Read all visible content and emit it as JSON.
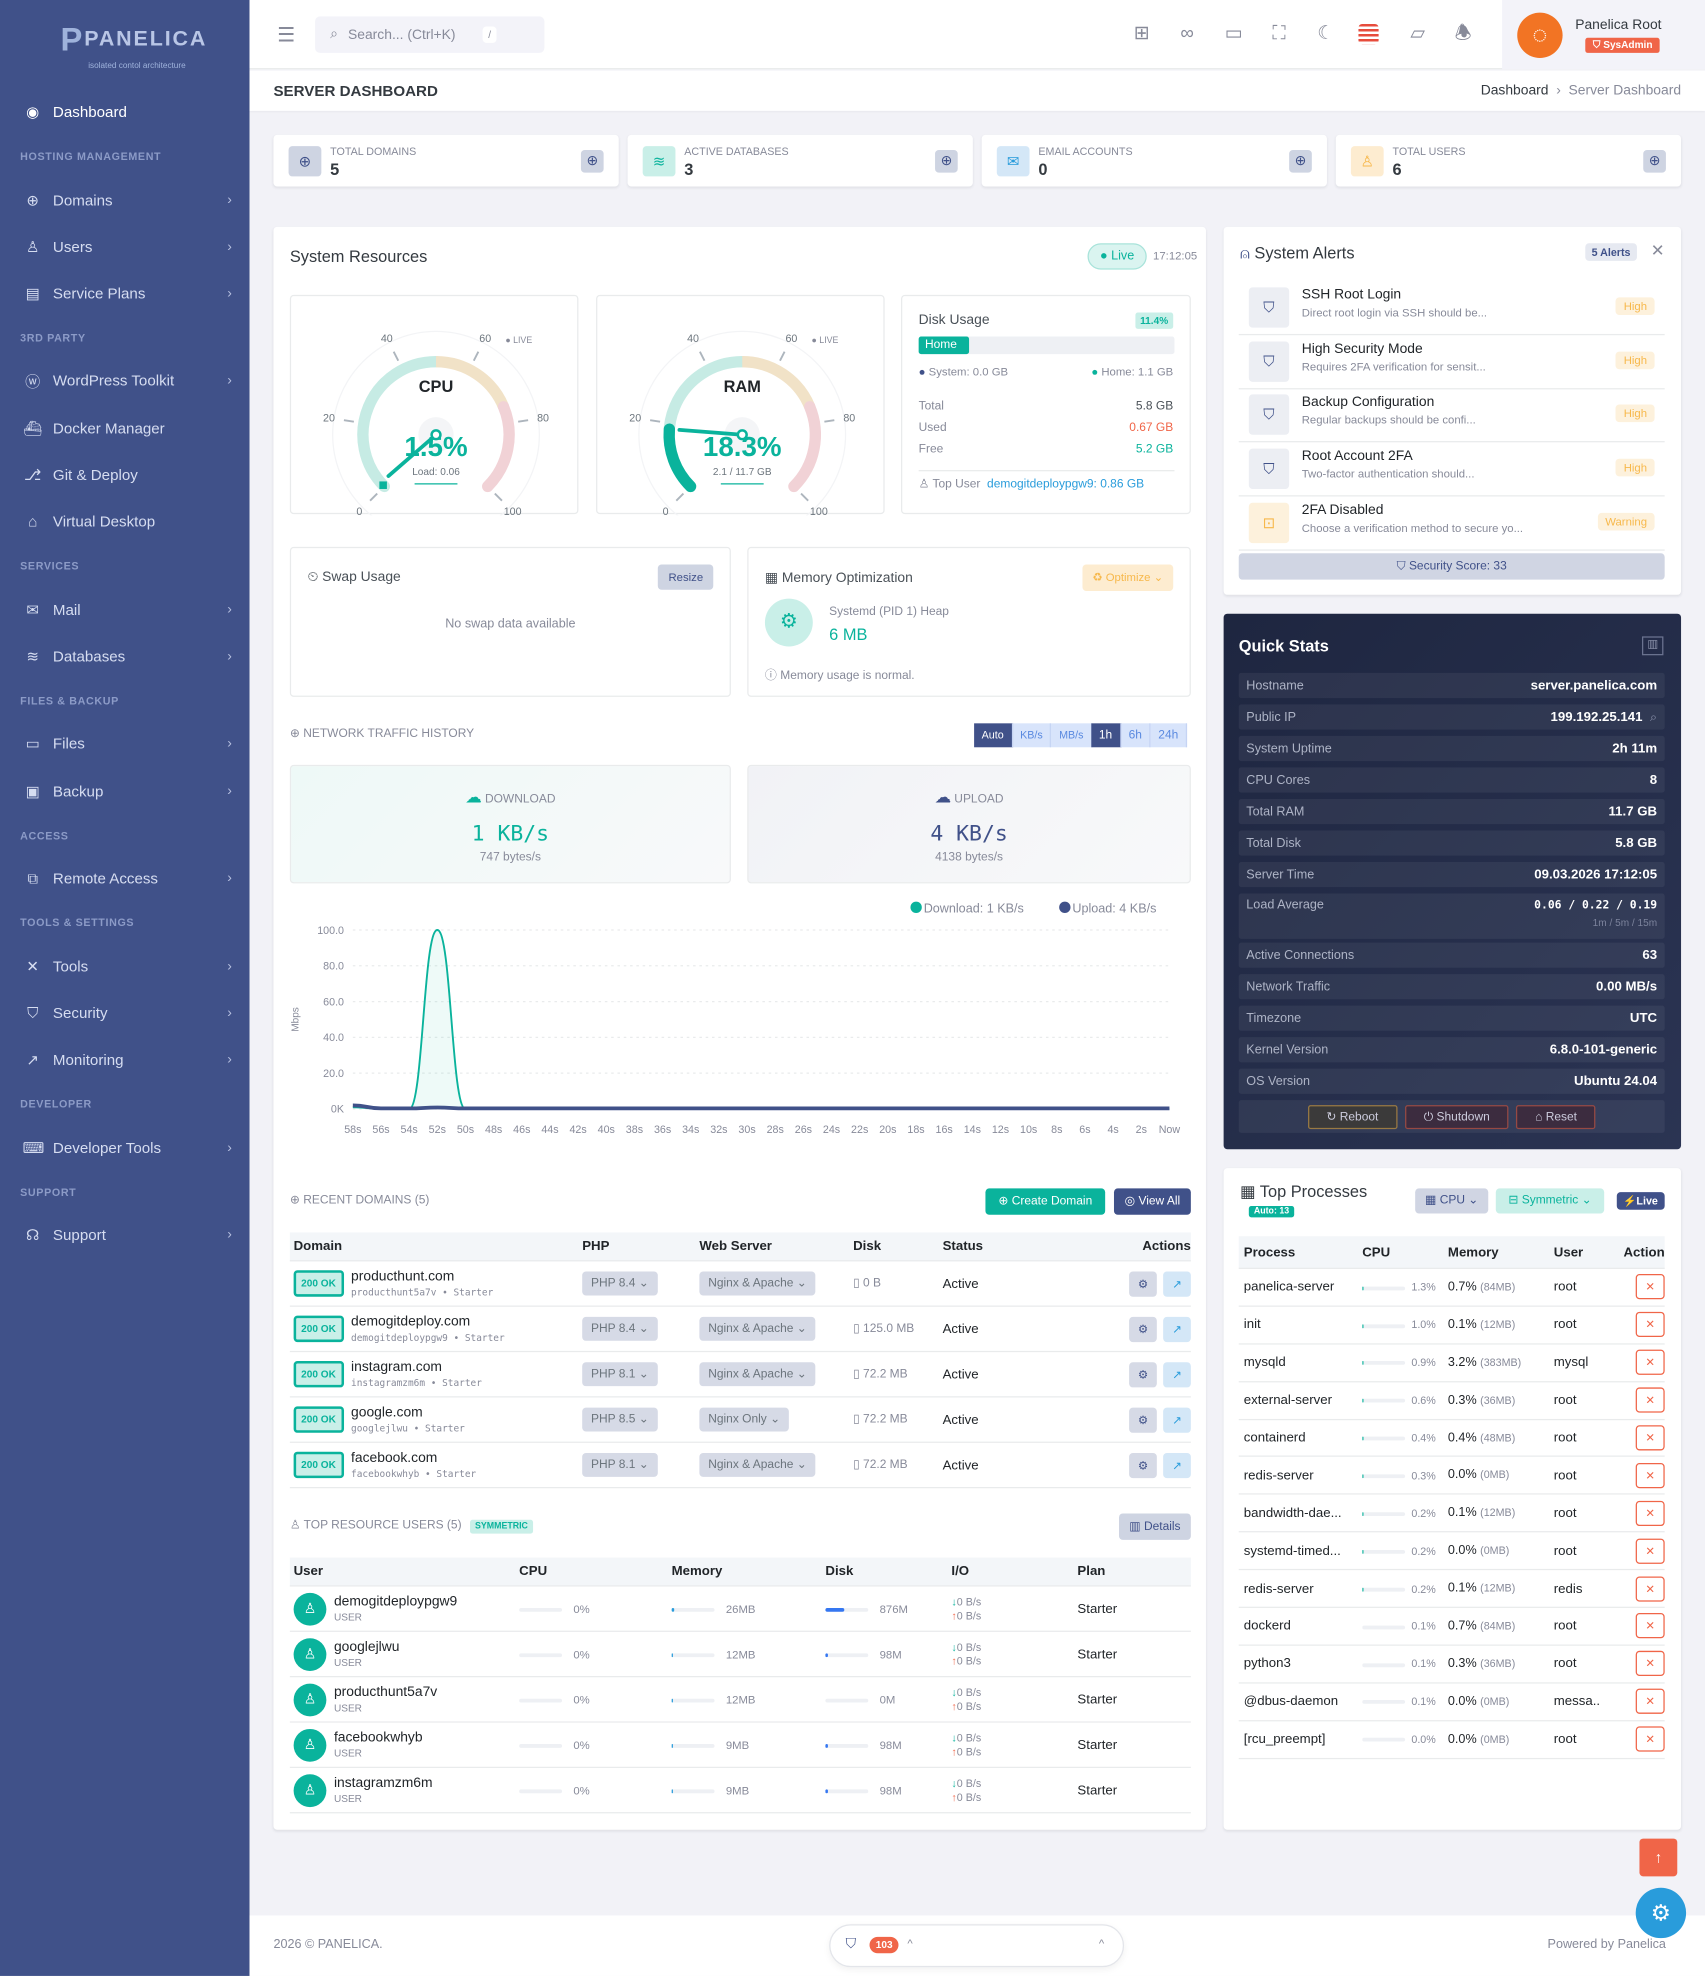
{
  "brand": {
    "name": "PANELICA",
    "tagline": "isolated contol architecture"
  },
  "sidebar": [
    {
      "type": "item",
      "label": "Dashboard",
      "icon": "dashboard-icon",
      "glyph": "◉",
      "chev": false,
      "active": true
    },
    {
      "type": "section",
      "label": "HOSTING MANAGEMENT"
    },
    {
      "type": "item",
      "label": "Domains",
      "icon": "globe-icon",
      "glyph": "⊕",
      "chev": true
    },
    {
      "type": "item",
      "label": "Users",
      "icon": "user-icon",
      "glyph": "♙",
      "chev": true
    },
    {
      "type": "item",
      "label": "Service Plans",
      "icon": "plans-icon",
      "glyph": "▤",
      "chev": true
    },
    {
      "type": "section",
      "label": "3RD PARTY"
    },
    {
      "type": "item",
      "label": "WordPress Toolkit",
      "icon": "wordpress-icon",
      "glyph": "ⓦ",
      "chev": true
    },
    {
      "type": "item",
      "label": "Docker Manager",
      "icon": "docker-icon",
      "glyph": "⛴",
      "chev": false
    },
    {
      "type": "item",
      "label": "Git & Deploy",
      "icon": "git-icon",
      "glyph": "⎇",
      "chev": false
    },
    {
      "type": "item",
      "label": "Virtual Desktop",
      "icon": "desktop-icon",
      "glyph": "⌂",
      "chev": false
    },
    {
      "type": "section",
      "label": "SERVICES"
    },
    {
      "type": "item",
      "label": "Mail",
      "icon": "mail-icon",
      "glyph": "✉",
      "chev": true
    },
    {
      "type": "item",
      "label": "Databases",
      "icon": "database-icon",
      "glyph": "≋",
      "chev": true
    },
    {
      "type": "section",
      "label": "FILES & BACKUP"
    },
    {
      "type": "item",
      "label": "Files",
      "icon": "folder-icon",
      "glyph": "▭",
      "chev": true
    },
    {
      "type": "item",
      "label": "Backup",
      "icon": "backup-icon",
      "glyph": "▣",
      "chev": true
    },
    {
      "type": "section",
      "label": "ACCESS"
    },
    {
      "type": "item",
      "label": "Remote Access",
      "icon": "remote-icon",
      "glyph": "⧉",
      "chev": true
    },
    {
      "type": "section",
      "label": "TOOLS & SETTINGS"
    },
    {
      "type": "item",
      "label": "Tools",
      "icon": "tools-icon",
      "glyph": "✕",
      "chev": true
    },
    {
      "type": "item",
      "label": "Security",
      "icon": "shield-icon",
      "glyph": "⛉",
      "chev": true
    },
    {
      "type": "item",
      "label": "Monitoring",
      "icon": "chart-icon",
      "glyph": "↗",
      "chev": true
    },
    {
      "type": "section",
      "label": "DEVELOPER"
    },
    {
      "type": "item",
      "label": "Developer Tools",
      "icon": "code-icon",
      "glyph": "⌨",
      "chev": true
    },
    {
      "type": "section",
      "label": "SUPPORT"
    },
    {
      "type": "item",
      "label": "Support",
      "icon": "headset-icon",
      "glyph": "☊",
      "chev": true
    }
  ],
  "topbar": {
    "search_placeholder": "Search... (Ctrl+K)",
    "search_kbd": "/",
    "icons": [
      "qr-code-icon",
      "apps-grid-icon",
      "monitor-icon",
      "fullscreen-icon",
      "dark-mode-moon-icon",
      "us-flag-icon",
      "notes-icon",
      "bell-icon"
    ],
    "user_name": "Panelica Root",
    "user_role": "SysAdmin"
  },
  "page": {
    "title": "SERVER DASHBOARD",
    "breadcrumb": [
      "Dashboard",
      "Server Dashboard"
    ]
  },
  "stats": [
    {
      "label": "TOTAL DOMAINS",
      "value": "5",
      "icon": "globe-icon",
      "glyph": "⊕",
      "bg": "#ced4e2",
      "fg": "#405189"
    },
    {
      "label": "ACTIVE DATABASES",
      "value": "3",
      "icon": "database-icon",
      "glyph": "≋",
      "bg": "#c9efe8",
      "fg": "#0ab39c"
    },
    {
      "label": "EMAIL ACCOUNTS",
      "value": "0",
      "icon": "mail-icon",
      "glyph": "✉",
      "bg": "#d4e7f7",
      "fg": "#299cdb"
    },
    {
      "label": "TOTAL USERS",
      "value": "6",
      "icon": "user-icon",
      "glyph": "♙",
      "bg": "#fdecd0",
      "fg": "#f7b84b"
    }
  ],
  "resources": {
    "title": "System Resources",
    "live": "Live",
    "time": "17:12:05",
    "cpu": {
      "label": "CPU",
      "value": 1.5,
      "display": "1.5%",
      "sub": "Load: 0.06",
      "live": "LIVE"
    },
    "ram": {
      "label": "RAM",
      "value": 18.3,
      "display": "18.3%",
      "sub": "2.1 / 11.7 GB",
      "live": "LIVE"
    },
    "gauge_ticks": [
      "0",
      "20",
      "40",
      "60",
      "80",
      "100"
    ],
    "disk": {
      "title": "Disk Usage",
      "percent": "11.4%",
      "fill": 11.4,
      "bar_label": "Home",
      "system": "System: 0.0 GB",
      "home": "Home: 1.1 GB",
      "rows": [
        {
          "k": "Total",
          "v": "5.8 GB",
          "c": "#495057"
        },
        {
          "k": "Used",
          "v": "0.67 GB",
          "c": "#f06548"
        },
        {
          "k": "Free",
          "v": "5.2 GB",
          "c": "#0ab39c"
        }
      ],
      "top_user_label": "Top User",
      "top_user": "demogitdeploypgw9: 0.86 GB"
    },
    "swap": {
      "title": "Swap Usage",
      "button": "Resize",
      "empty": "No swap data available"
    },
    "memopt": {
      "title": "Memory Optimization",
      "button": "Optimize",
      "heap_label": "Systemd (PID 1) Heap",
      "heap_value": "6 MB",
      "note": "Memory usage is normal."
    }
  },
  "network": {
    "title": "NETWORK TRAFFIC HISTORY",
    "units": [
      "Auto",
      "KB/s",
      "MB/s"
    ],
    "ranges": [
      "1h",
      "6h",
      "24h"
    ],
    "active_unit": "Auto",
    "active_range": "1h",
    "download": {
      "label": "DOWNLOAD",
      "value": "1 KB/s",
      "bytes": "747 bytes/s"
    },
    "upload": {
      "label": "UPLOAD",
      "value": "4 KB/s",
      "bytes": "4138 bytes/s"
    }
  },
  "chart_data": {
    "type": "line",
    "ylabel": "Mbps",
    "ylim": [
      0,
      100
    ],
    "yticks": [
      "0K",
      "20.0",
      "40.0",
      "60.0",
      "80.0",
      "100.0"
    ],
    "grid": true,
    "legend_position": "top-right",
    "x": [
      "58s",
      "56s",
      "54s",
      "52s",
      "50s",
      "48s",
      "46s",
      "44s",
      "42s",
      "40s",
      "38s",
      "36s",
      "34s",
      "32s",
      "30s",
      "28s",
      "26s",
      "24s",
      "22s",
      "20s",
      "18s",
      "16s",
      "14s",
      "12s",
      "10s",
      "8s",
      "6s",
      "4s",
      "2s",
      "Now"
    ],
    "series": [
      {
        "name": "Download: 1 KB/s",
        "color": "#0ab39c",
        "values": [
          1,
          0,
          0,
          100,
          0,
          0,
          0,
          0,
          0,
          0,
          0,
          0,
          0,
          0,
          0,
          0,
          0,
          0,
          0,
          0,
          0,
          0,
          0,
          0,
          0,
          0,
          0,
          0,
          0,
          0
        ]
      },
      {
        "name": "Upload: 4 KB/s",
        "color": "#405189",
        "values": [
          2,
          0.3,
          0.3,
          0.8,
          0.3,
          0.3,
          0.3,
          0.3,
          0.3,
          0.3,
          0.3,
          0.3,
          0.3,
          0.3,
          0.3,
          0.3,
          0.3,
          0.3,
          0.3,
          0.3,
          0.3,
          0.3,
          0.3,
          0.3,
          0.3,
          0.3,
          0.3,
          0.3,
          0.3,
          0.3
        ]
      }
    ]
  },
  "domains": {
    "title": "RECENT DOMAINS (5)",
    "create": "Create Domain",
    "view_all": "View All",
    "headers": [
      "Domain",
      "PHP",
      "Web Server",
      "Disk",
      "Status",
      "Actions"
    ],
    "rows": [
      {
        "status": "200 OK",
        "name": "producthunt.com",
        "sub": "producthunt5a7v • Starter",
        "php": "PHP 8.4",
        "server": "Nginx & Apache",
        "disk": "0 B",
        "state": "Active"
      },
      {
        "status": "200 OK",
        "name": "demogitdeploy.com",
        "sub": "demogitdeploypgw9 • Starter",
        "php": "PHP 8.4",
        "server": "Nginx & Apache",
        "disk": "125.0 MB",
        "state": "Active"
      },
      {
        "status": "200 OK",
        "name": "instagram.com",
        "sub": "instagramzm6m • Starter",
        "php": "PHP 8.1",
        "server": "Nginx & Apache",
        "disk": "72.2 MB",
        "state": "Active"
      },
      {
        "status": "200 OK",
        "name": "google.com",
        "sub": "googlejlwu • Starter",
        "php": "PHP 8.5",
        "server": "Nginx Only",
        "disk": "72.2 MB",
        "state": "Active"
      },
      {
        "status": "200 OK",
        "name": "facebook.com",
        "sub": "facebookwhyb • Starter",
        "php": "PHP 8.1",
        "server": "Nginx & Apache",
        "disk": "72.2 MB",
        "state": "Active"
      }
    ]
  },
  "resource_users": {
    "title": "TOP RESOURCE USERS (5)",
    "badge": "SYMMETRIC",
    "details": "Details",
    "headers": [
      "User",
      "CPU",
      "Memory",
      "Disk",
      "I/O",
      "Plan"
    ],
    "rows": [
      {
        "name": "demogitdeploypgw9",
        "role": "USER",
        "cpu": "0%",
        "cpu_pct": 0,
        "mem": "26MB",
        "mem_pct": 5,
        "disk": "876M",
        "disk_pct": 45,
        "down": "0 B/s",
        "up": "0 B/s",
        "plan": "Starter"
      },
      {
        "name": "googlejlwu",
        "role": "USER",
        "cpu": "0%",
        "cpu_pct": 0,
        "mem": "12MB",
        "mem_pct": 2,
        "disk": "98M",
        "disk_pct": 5,
        "down": "0 B/s",
        "up": "0 B/s",
        "plan": "Starter"
      },
      {
        "name": "producthunt5a7v",
        "role": "USER",
        "cpu": "0%",
        "cpu_pct": 0,
        "mem": "12MB",
        "mem_pct": 2,
        "disk": "0M",
        "disk_pct": 0,
        "down": "0 B/s",
        "up": "0 B/s",
        "plan": "Starter"
      },
      {
        "name": "facebookwhyb",
        "role": "USER",
        "cpu": "0%",
        "cpu_pct": 0,
        "mem": "9MB",
        "mem_pct": 2,
        "disk": "98M",
        "disk_pct": 5,
        "down": "0 B/s",
        "up": "0 B/s",
        "plan": "Starter"
      },
      {
        "name": "instagramzm6m",
        "role": "USER",
        "cpu": "0%",
        "cpu_pct": 0,
        "mem": "9MB",
        "mem_pct": 2,
        "disk": "98M",
        "disk_pct": 5,
        "down": "0 B/s",
        "up": "0 B/s",
        "plan": "Starter"
      }
    ]
  },
  "alerts": {
    "title": "System Alerts",
    "count": "5 Alerts",
    "score": "Security Score: 33",
    "items": [
      {
        "title": "SSH Root Login",
        "desc": "Direct root login via SSH should be...",
        "level": "High",
        "icon": "shield-icon"
      },
      {
        "title": "High Security Mode",
        "desc": "Requires 2FA verification for sensit...",
        "level": "High",
        "icon": "shield-icon"
      },
      {
        "title": "Backup Configuration",
        "desc": "Regular backups should be confi...",
        "level": "High",
        "icon": "shield-icon"
      },
      {
        "title": "Root Account 2FA",
        "desc": "Two-factor authentication should...",
        "level": "High",
        "icon": "shield-icon"
      },
      {
        "title": "2FA Disabled",
        "desc": "Choose a verification method to secure yo...",
        "level": "Warning",
        "icon": "unlock-icon"
      }
    ]
  },
  "quick_stats": {
    "title": "Quick Stats",
    "rows": [
      {
        "k": "Hostname",
        "v": "server.panelica.com"
      },
      {
        "k": "Public IP",
        "v": "199.192.25.141"
      },
      {
        "k": "System Uptime",
        "v": "2h 11m"
      },
      {
        "k": "CPU Cores",
        "v": "8"
      },
      {
        "k": "Total RAM",
        "v": "11.7 GB"
      },
      {
        "k": "Total Disk",
        "v": "5.8 GB"
      },
      {
        "k": "Server Time",
        "v": "09.03.2026 17:12:05"
      },
      {
        "k": "Load Average",
        "v": "0.06 / 0.22 / 0.19",
        "sub": "1m / 5m / 15m"
      },
      {
        "k": "Active Connections",
        "v": "63"
      },
      {
        "k": "Network Traffic",
        "v": "0.00 MB/s"
      },
      {
        "k": "Timezone",
        "v": "UTC"
      },
      {
        "k": "Kernel Version",
        "v": "6.8.0-101-generic"
      },
      {
        "k": "OS Version",
        "v": "Ubuntu 24.04"
      }
    ],
    "buttons": [
      "Reboot",
      "Shutdown",
      "Reset"
    ]
  },
  "processes": {
    "title": "Top Processes",
    "auto": "Auto: 13",
    "sort": "CPU",
    "mode": "Symmetric",
    "live": "Live",
    "headers": [
      "Process",
      "CPU",
      "Memory",
      "User",
      "Action"
    ],
    "rows": [
      {
        "name": "panelica-server",
        "cpu": "1.3%",
        "cpu_pct": 1.3,
        "mem": "0.7%",
        "mem_mb": "(84MB)",
        "user": "root"
      },
      {
        "name": "init",
        "cpu": "1.0%",
        "cpu_pct": 1.0,
        "mem": "0.1%",
        "mem_mb": "(12MB)",
        "user": "root"
      },
      {
        "name": "mysqld",
        "cpu": "0.9%",
        "cpu_pct": 0.9,
        "mem": "3.2%",
        "mem_mb": "(383MB)",
        "user": "mysql"
      },
      {
        "name": "external-server",
        "cpu": "0.6%",
        "cpu_pct": 0.6,
        "mem": "0.3%",
        "mem_mb": "(36MB)",
        "user": "root"
      },
      {
        "name": "containerd",
        "cpu": "0.4%",
        "cpu_pct": 0.4,
        "mem": "0.4%",
        "mem_mb": "(48MB)",
        "user": "root"
      },
      {
        "name": "redis-server",
        "cpu": "0.3%",
        "cpu_pct": 0.3,
        "mem": "0.0%",
        "mem_mb": "(0MB)",
        "user": "root"
      },
      {
        "name": "bandwidth-dae...",
        "cpu": "0.2%",
        "cpu_pct": 0.2,
        "mem": "0.1%",
        "mem_mb": "(12MB)",
        "user": "root"
      },
      {
        "name": "systemd-timed...",
        "cpu": "0.2%",
        "cpu_pct": 0.2,
        "mem": "0.0%",
        "mem_mb": "(0MB)",
        "user": "root"
      },
      {
        "name": "redis-server",
        "cpu": "0.2%",
        "cpu_pct": 0.2,
        "mem": "0.1%",
        "mem_mb": "(12MB)",
        "user": "redis"
      },
      {
        "name": "dockerd",
        "cpu": "0.1%",
        "cpu_pct": 0.1,
        "mem": "0.7%",
        "mem_mb": "(84MB)",
        "user": "root"
      },
      {
        "name": "python3",
        "cpu": "0.1%",
        "cpu_pct": 0.1,
        "mem": "0.3%",
        "mem_mb": "(36MB)",
        "user": "root"
      },
      {
        "name": "@dbus-daemon",
        "cpu": "0.1%",
        "cpu_pct": 0.1,
        "mem": "0.0%",
        "mem_mb": "(0MB)",
        "user": "messa.."
      },
      {
        "name": "[rcu_preempt]",
        "cpu": "0.0%",
        "cpu_pct": 0,
        "mem": "0.0%",
        "mem_mb": "(0MB)",
        "user": "root"
      }
    ]
  },
  "footer": {
    "copyright": "2026 © PANELICA.",
    "powered": "Powered by Panelica",
    "security_count": "103"
  },
  "colors": {
    "primary": "#405189",
    "success": "#0ab39c",
    "warning": "#f7b84b",
    "danger": "#f06548",
    "info": "#299cdb"
  }
}
